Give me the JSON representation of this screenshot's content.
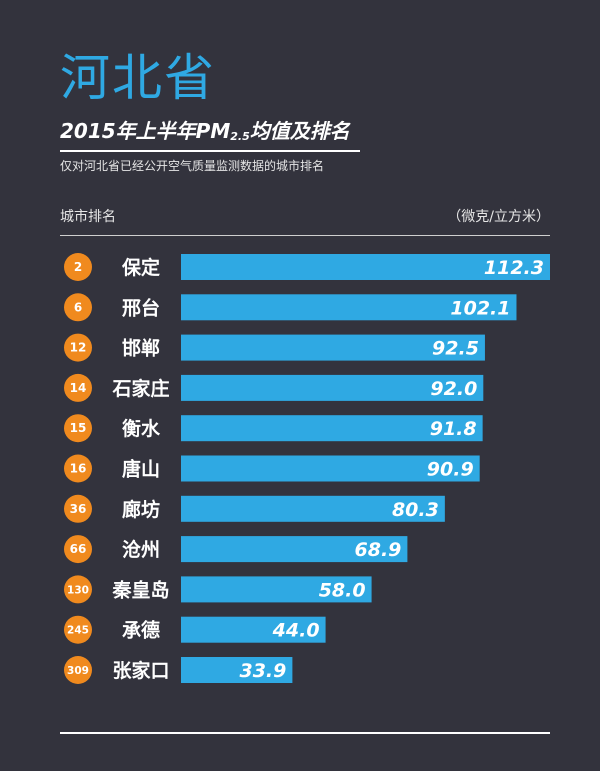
{
  "title": "河北省",
  "subtitle": {
    "pre": "2015年上半年PM",
    "sub": "2.5",
    "post": "均值及排名"
  },
  "note": "仅对河北省已经公开空气质量监测数据的城市排名",
  "column_left": "城市排名",
  "column_right": "（微克/立方米）",
  "colors": {
    "background": "#33333d",
    "bar": "#2fa9e3",
    "badge": "#f08a1e",
    "title": "#2fa9e3"
  },
  "chart_data": {
    "type": "bar",
    "orientation": "horizontal",
    "unit": "微克/立方米",
    "ranks": [
      "2",
      "6",
      "12",
      "14",
      "15",
      "16",
      "36",
      "66",
      "130",
      "245",
      "309"
    ],
    "categories": [
      "保定",
      "邢台",
      "邯郸",
      "石家庄",
      "衡水",
      "唐山",
      "廊坊",
      "沧州",
      "秦皇岛",
      "承德",
      "张家口"
    ],
    "values": [
      112.3,
      102.1,
      92.5,
      92.0,
      91.8,
      90.9,
      80.3,
      68.9,
      58.0,
      44.0,
      33.9
    ],
    "labels": [
      "112.3",
      "102.1",
      "92.5",
      "92.0",
      "91.8",
      "90.9",
      "80.3",
      "68.9",
      "58.0",
      "44.0",
      "33.9"
    ],
    "xlim": [
      0,
      112.3
    ]
  }
}
